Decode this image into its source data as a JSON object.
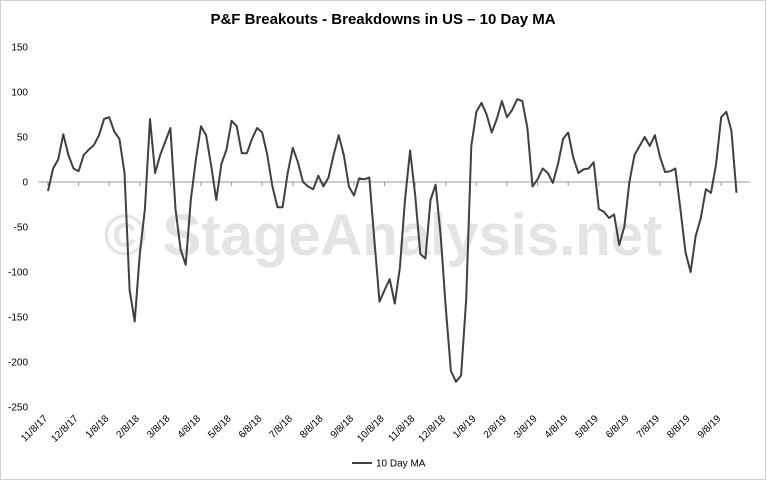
{
  "chart_data": {
    "type": "line",
    "title": "P&F Breakouts - Breakdowns in US – 10 Day MA",
    "watermark": "© StageAnalysis.net",
    "categories": [
      "11/8/17",
      null,
      null,
      null,
      null,
      null,
      "12/8/17",
      null,
      null,
      null,
      null,
      null,
      "1/8/18",
      null,
      null,
      null,
      null,
      null,
      "2/8/18",
      null,
      null,
      null,
      null,
      null,
      "3/8/18",
      null,
      null,
      null,
      null,
      null,
      "4/8/18",
      null,
      null,
      null,
      null,
      null,
      "5/8/18",
      null,
      null,
      null,
      null,
      null,
      "6/8/18",
      null,
      null,
      null,
      null,
      null,
      "7/8/18",
      null,
      null,
      null,
      null,
      null,
      "8/8/18",
      null,
      null,
      null,
      null,
      null,
      "9/8/18",
      null,
      null,
      null,
      null,
      null,
      "10/8/18",
      null,
      null,
      null,
      null,
      null,
      "11/8/18",
      null,
      null,
      null,
      null,
      null,
      "12/8/18",
      null,
      null,
      null,
      null,
      null,
      "1/8/19",
      null,
      null,
      null,
      null,
      null,
      "2/8/19",
      null,
      null,
      null,
      null,
      null,
      "3/8/19",
      null,
      null,
      null,
      null,
      null,
      "4/8/19",
      null,
      null,
      null,
      null,
      null,
      "5/8/19",
      null,
      null,
      null,
      null,
      null,
      "6/8/19",
      null,
      null,
      null,
      null,
      null,
      "7/8/19",
      null,
      null,
      null,
      null,
      null,
      "8/8/19",
      null,
      null,
      null,
      null,
      null,
      "9/8/19",
      null,
      null,
      null
    ],
    "series": [
      {
        "name": "10 Day MA",
        "color": "#404040",
        "values": [
          -10,
          15,
          25,
          53,
          30,
          15,
          12,
          30,
          36,
          41,
          52,
          70,
          72,
          56,
          48,
          10,
          -120,
          -155,
          -80,
          -30,
          70,
          10,
          30,
          45,
          60,
          -30,
          -75,
          -92,
          -20,
          25,
          62,
          52,
          18,
          -20,
          20,
          36,
          68,
          62,
          32,
          32,
          48,
          60,
          55,
          30,
          -5,
          -28,
          -28,
          10,
          38,
          22,
          0,
          -5,
          -8,
          7,
          -5,
          5,
          30,
          52,
          30,
          -5,
          -15,
          4,
          3,
          5,
          -65,
          -133,
          -120,
          -108,
          -135,
          -95,
          -20,
          35,
          -15,
          -80,
          -85,
          -20,
          -3,
          -60,
          -140,
          -210,
          -222,
          -215,
          -130,
          40,
          78,
          88,
          75,
          55,
          70,
          90,
          72,
          80,
          92,
          90,
          60,
          -5,
          3,
          15,
          10,
          -1,
          20,
          48,
          55,
          27,
          10,
          14,
          15,
          22,
          -30,
          -33,
          -40,
          -36,
          -70,
          -50,
          0,
          30,
          40,
          50,
          40,
          52,
          28,
          11,
          12,
          15,
          -30,
          -78,
          -100,
          -60,
          -40,
          -8,
          -12,
          20,
          72,
          78,
          57,
          -12
        ]
      }
    ],
    "ylim": [
      -250,
      150
    ],
    "yticks": [
      -250,
      -200,
      -150,
      -100,
      -50,
      0,
      50,
      100,
      150
    ],
    "grid": false,
    "legend": "bottom"
  }
}
